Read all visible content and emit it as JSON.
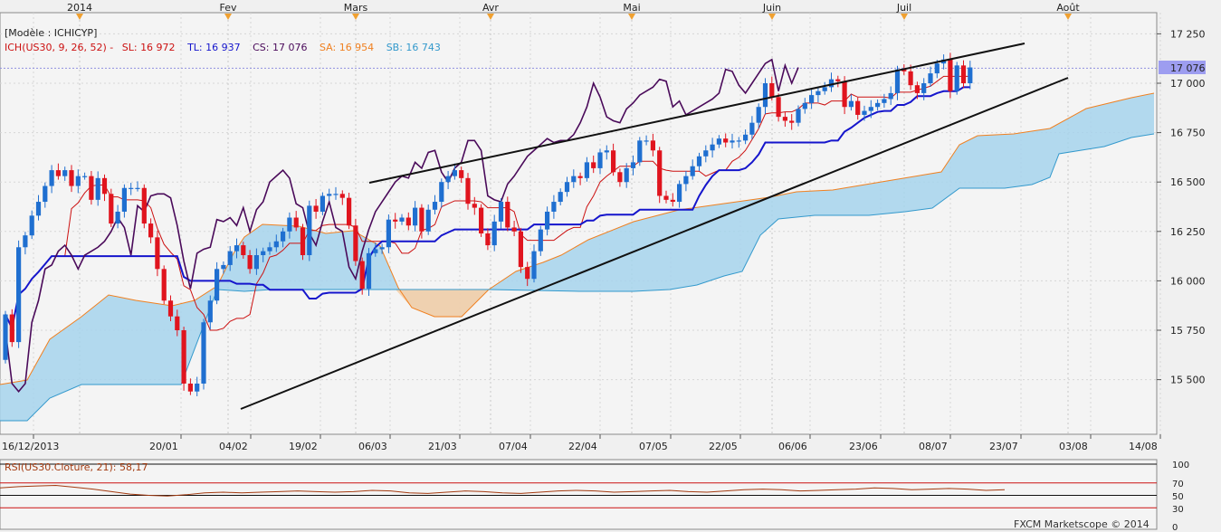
{
  "colors": {
    "background": "#f0f0f0",
    "grid": "#d6d6d6",
    "bull": "#1f6fd0",
    "bear": "#e0141e",
    "tenkan": "#cc1111",
    "kijun": "#1515cc",
    "chikou": "#4a0a5a",
    "senkouA": "#f08020",
    "senkouB": "#3399cc",
    "cloud": "#a6d4ec",
    "cloudBear": "#f5cfa8",
    "trendline": "#111111",
    "price_tag": "#9d9df0",
    "rsi": "#a33a10"
  },
  "top_months": [
    "2014",
    "Fev",
    "Mars",
    "Avr",
    "Mai",
    "Juin",
    "Juil",
    "Août"
  ],
  "legend": {
    "model": "[Modèle : ICHICYP]",
    "ich": "ICH(US30, 9, 26, 52) -",
    "sl": "SL: 16 972",
    "tl": "TL: 16 937",
    "cs": "CS: 17 076",
    "sa": "SA: 16 954",
    "sb": "SB: 16 743"
  },
  "price_tag": "17 076",
  "rsi": {
    "label": "RSI(US30.Cloture, 21): 58,17",
    "levels": [
      "100",
      "70",
      "50",
      "30",
      "0"
    ],
    "values": [
      62,
      64,
      65,
      66,
      63,
      60,
      56,
      52,
      50,
      49,
      51,
      54,
      55,
      54,
      55,
      56,
      57,
      56,
      55,
      56,
      58,
      57,
      54,
      53,
      55,
      57,
      56,
      54,
      53,
      55,
      57,
      58,
      57,
      55,
      56,
      57,
      58,
      56,
      55,
      57,
      59,
      60,
      59,
      57,
      58,
      59,
      60,
      62,
      61,
      59,
      60,
      61,
      60,
      58,
      59
    ]
  },
  "credit": "FXCM Marketscope © 2014",
  "chart_data": {
    "type": "candlestick",
    "title": "",
    "symbol": "US30",
    "timeframe": "daily",
    "y_ticks": [
      17250,
      17000,
      16750,
      16500,
      16250,
      16000,
      15750,
      15500
    ],
    "y_tick_labels": [
      "17 250",
      "17 000",
      "16 750",
      "16 500",
      "16 250",
      "16 000",
      "15 750",
      "15 500"
    ],
    "ylim": [
      15300,
      17330
    ],
    "x_tick_labels": [
      "16/12/2013",
      "20/01",
      "04/02",
      "19/02",
      "06/03",
      "21/03",
      "07/04",
      "22/04",
      "07/05",
      "22/05",
      "06/06",
      "23/06",
      "08/07",
      "23/07",
      "03/08",
      "14/08"
    ],
    "last_price": 17076,
    "closes": [
      15830,
      15690,
      16170,
      16230,
      16330,
      16400,
      16480,
      16560,
      16530,
      16560,
      16480,
      16530,
      16530,
      16410,
      16520,
      16440,
      16290,
      16350,
      16470,
      16470,
      16470,
      16290,
      16220,
      16060,
      15900,
      15820,
      15750,
      15480,
      15440,
      15480,
      15790,
      15900,
      16060,
      16080,
      16150,
      16180,
      16130,
      16060,
      16130,
      16150,
      16170,
      16200,
      16250,
      16320,
      16270,
      16130,
      16380,
      16350,
      16430,
      16440,
      16440,
      16420,
      16280,
      16100,
      15960,
      16140,
      16160,
      16170,
      16310,
      16300,
      16320,
      16280,
      16370,
      16250,
      16360,
      16400,
      16500,
      16530,
      16560,
      16520,
      16390,
      16370,
      16240,
      16180,
      16300,
      16400,
      16270,
      16250,
      16070,
      16010,
      16150,
      16260,
      16350,
      16400,
      16450,
      16500,
      16530,
      16520,
      16600,
      16570,
      16650,
      16660,
      16550,
      16500,
      16570,
      16600,
      16710,
      16710,
      16660,
      16430,
      16410,
      16400,
      16490,
      16530,
      16580,
      16630,
      16660,
      16690,
      16720,
      16700,
      16710,
      16710,
      16740,
      16800,
      16880,
      17000,
      16930,
      16830,
      16810,
      16800,
      16870,
      16900,
      16940,
      16960,
      16980,
      17020,
      17010,
      16880,
      16910,
      16840,
      16860,
      16880,
      16900,
      16920,
      16950,
      17070,
      17060,
      16990,
      16950,
      17000,
      17050,
      17100,
      17120,
      16960,
      17090,
      17000,
      17080
    ]
  }
}
